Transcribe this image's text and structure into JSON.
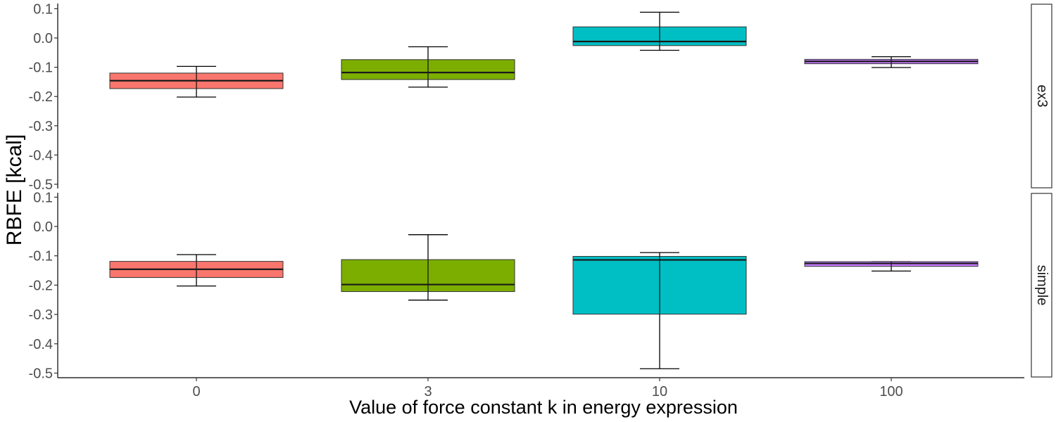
{
  "chart_data": {
    "type": "boxplot",
    "xlabel": "Value of force constant k in energy expression",
    "ylabel": "RBFE [kcal]",
    "categories": [
      "0",
      "3",
      "10",
      "100"
    ],
    "category_colors": [
      "#F8766D",
      "#7CAE00",
      "#00BFC4",
      "#C77CFF"
    ],
    "ylim": [
      -0.5,
      0.1
    ],
    "yticks": [
      0.1,
      0.0,
      -0.1,
      -0.2,
      -0.3,
      -0.4,
      -0.5
    ],
    "ytick_labels": [
      "0.1",
      "0.0",
      "-0.1",
      "-0.2",
      "-0.3",
      "-0.4",
      "-0.5"
    ],
    "grid": false,
    "legend": "none",
    "panels": [
      {
        "name": "ex3",
        "boxes": [
          {
            "category": "0",
            "whisker_low": -0.202,
            "q1": -0.173,
            "median": -0.146,
            "q3": -0.12,
            "whisker_high": -0.097
          },
          {
            "category": "3",
            "whisker_low": -0.168,
            "q1": -0.142,
            "median": -0.118,
            "q3": -0.074,
            "whisker_high": -0.03
          },
          {
            "category": "10",
            "whisker_low": -0.042,
            "q1": -0.026,
            "median": -0.012,
            "q3": 0.038,
            "whisker_high": 0.088
          },
          {
            "category": "100",
            "whisker_low": -0.101,
            "q1": -0.088,
            "median": -0.08,
            "q3": -0.073,
            "whisker_high": -0.064
          }
        ]
      },
      {
        "name": "simple",
        "boxes": [
          {
            "category": "0",
            "whisker_low": -0.203,
            "q1": -0.174,
            "median": -0.146,
            "q3": -0.119,
            "whisker_high": -0.096
          },
          {
            "category": "3",
            "whisker_low": -0.251,
            "q1": -0.222,
            "median": -0.198,
            "q3": -0.113,
            "whisker_high": -0.028
          },
          {
            "category": "10",
            "whisker_low": -0.485,
            "q1": -0.299,
            "median": -0.114,
            "q3": -0.102,
            "whisker_high": -0.089
          },
          {
            "category": "100",
            "whisker_low": -0.152,
            "q1": -0.136,
            "median": -0.126,
            "q3": -0.12,
            "whisker_high": -0.12
          }
        ]
      }
    ]
  }
}
